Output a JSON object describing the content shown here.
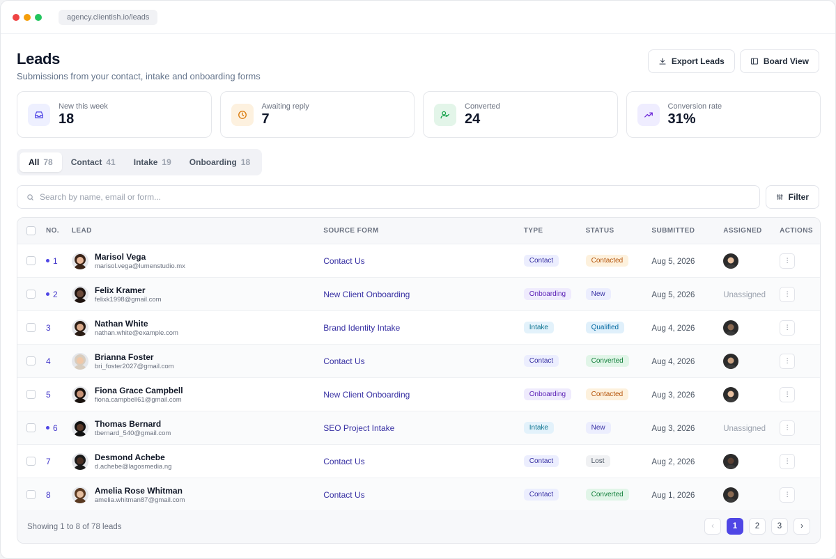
{
  "browser": {
    "url": "agency.clientish.io/leads"
  },
  "header": {
    "title": "Leads",
    "subtitle": "Submissions from your contact, intake and onboarding forms",
    "export_label": "Export Leads",
    "board_label": "Board View"
  },
  "stats": [
    {
      "label": "New this week",
      "value": "18",
      "icon": "inbox-icon",
      "bg": "#eef0ff",
      "fg": "#4f46e5"
    },
    {
      "label": "Awaiting reply",
      "value": "7",
      "icon": "clock-icon",
      "bg": "#fdf1df",
      "fg": "#d97706"
    },
    {
      "label": "Converted",
      "value": "24",
      "icon": "user-check-icon",
      "bg": "#e3f5e9",
      "fg": "#16a34a"
    },
    {
      "label": "Conversion rate",
      "value": "31%",
      "icon": "trending-up-icon",
      "bg": "#efedff",
      "fg": "#6d28d9"
    }
  ],
  "tabs": [
    {
      "label": "All",
      "count": "78",
      "active": true
    },
    {
      "label": "Contact",
      "count": "41"
    },
    {
      "label": "Intake",
      "count": "19"
    },
    {
      "label": "Onboarding",
      "count": "18"
    }
  ],
  "search": {
    "placeholder": "Search by name, email or form..."
  },
  "filter_label": "Filter",
  "table": {
    "columns": [
      "NO.",
      "LEAD",
      "SOURCE FORM",
      "TYPE",
      "STATUS",
      "SUBMITTED",
      "ASSIGNED",
      "ACTIONS"
    ],
    "rows": [
      {
        "no": "1",
        "unread": true,
        "name": "Marisol Vega",
        "email": "marisol.vega@lumenstudio.mx",
        "source": "Contact Us",
        "type": "Contact",
        "status": "Contacted",
        "date": "Aug 5, 2026",
        "assigned": "avatar"
      },
      {
        "no": "2",
        "unread": true,
        "name": "Felix Kramer",
        "email": "felixk1998@gmail.com",
        "source": "New Client Onboarding",
        "type": "Onboarding",
        "status": "New",
        "date": "Aug 5, 2026",
        "assigned": "Unassigned"
      },
      {
        "no": "3",
        "unread": false,
        "name": "Nathan White",
        "email": "nathan.white@example.com",
        "source": "Brand Identity Intake",
        "type": "Intake",
        "status": "Qualified",
        "date": "Aug 4, 2026",
        "assigned": "avatar"
      },
      {
        "no": "4",
        "unread": false,
        "name": "Brianna Foster",
        "email": "bri_foster2027@gmail.com",
        "source": "Contact Us",
        "type": "Contact",
        "status": "Converted",
        "date": "Aug 4, 2026",
        "assigned": "avatar"
      },
      {
        "no": "5",
        "unread": false,
        "name": "Fiona Grace Campbell",
        "email": "fiona.campbell61@gmail.com",
        "source": "New Client Onboarding",
        "type": "Onboarding",
        "status": "Contacted",
        "date": "Aug 3, 2026",
        "assigned": "avatar"
      },
      {
        "no": "6",
        "unread": true,
        "name": "Thomas Bernard",
        "email": "tbernard_540@gmail.com",
        "source": "SEO Project Intake",
        "type": "Intake",
        "status": "New",
        "date": "Aug 3, 2026",
        "assigned": "Unassigned"
      },
      {
        "no": "7",
        "unread": false,
        "name": "Desmond Achebe",
        "email": "d.achebe@lagosmedia.ng",
        "source": "Contact Us",
        "type": "Contact",
        "status": "Lost",
        "date": "Aug 2, 2026",
        "assigned": "avatar"
      },
      {
        "no": "8",
        "unread": false,
        "name": "Amelia Rose Whitman",
        "email": "amelia.whitman87@gmail.com",
        "source": "Contact Us",
        "type": "Contact",
        "status": "Converted",
        "date": "Aug 1, 2026",
        "assigned": "avatar"
      }
    ]
  },
  "badge_colors": {
    "Contact": {
      "bg": "#eceefe",
      "fg": "#3730a3"
    },
    "Onboarding": {
      "bg": "#efebfd",
      "fg": "#5b21b6"
    },
    "Intake": {
      "bg": "#e3f2fb",
      "fg": "#0e7490"
    },
    "Contacted": {
      "bg": "#fdf1dd",
      "fg": "#b45309"
    },
    "New": {
      "bg": "#eceefe",
      "fg": "#3730a3"
    },
    "Qualified": {
      "bg": "#e0f0fb",
      "fg": "#0369a1"
    },
    "Converted": {
      "bg": "#e1f5e8",
      "fg": "#15803d"
    },
    "Lost": {
      "bg": "#f0f1f3",
      "fg": "#4b5563"
    }
  },
  "footer": {
    "showing": "Showing 1 to 8 of 78 leads",
    "pages": [
      "1",
      "2",
      "3"
    ],
    "prev": "‹",
    "next": "›"
  }
}
